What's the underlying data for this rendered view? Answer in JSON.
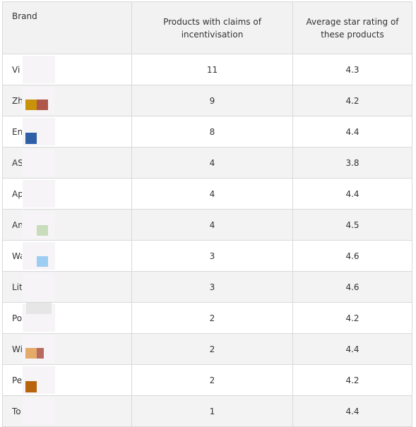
{
  "table": {
    "headers": {
      "brand": "Brand",
      "products": "Products with claims of incentivisation",
      "rating": "Average star rating of these products"
    },
    "rows": [
      {
        "brand": "Vi",
        "products": "11",
        "rating": "4.3"
      },
      {
        "brand": "Zh",
        "products": "9",
        "rating": "4.2"
      },
      {
        "brand": "En",
        "products": "8",
        "rating": "4.4"
      },
      {
        "brand": "ASV",
        "products": "4",
        "rating": "3.8"
      },
      {
        "brand": "Ap",
        "products": "4",
        "rating": "4.4"
      },
      {
        "brand": "Ank",
        "products": "4",
        "rating": "4.5"
      },
      {
        "brand": "Wa",
        "products": "3",
        "rating": "4.6"
      },
      {
        "brand": "Litt",
        "products": "3",
        "rating": "4.6"
      },
      {
        "brand": "Po",
        "products": "2",
        "rating": "4.2"
      },
      {
        "brand": "Wi",
        "products": "2",
        "rating": "4.4"
      },
      {
        "brand": "Pe",
        "products": "2",
        "rating": "4.2"
      },
      {
        "brand": "To",
        "products": "1",
        "rating": "4.4"
      }
    ]
  }
}
